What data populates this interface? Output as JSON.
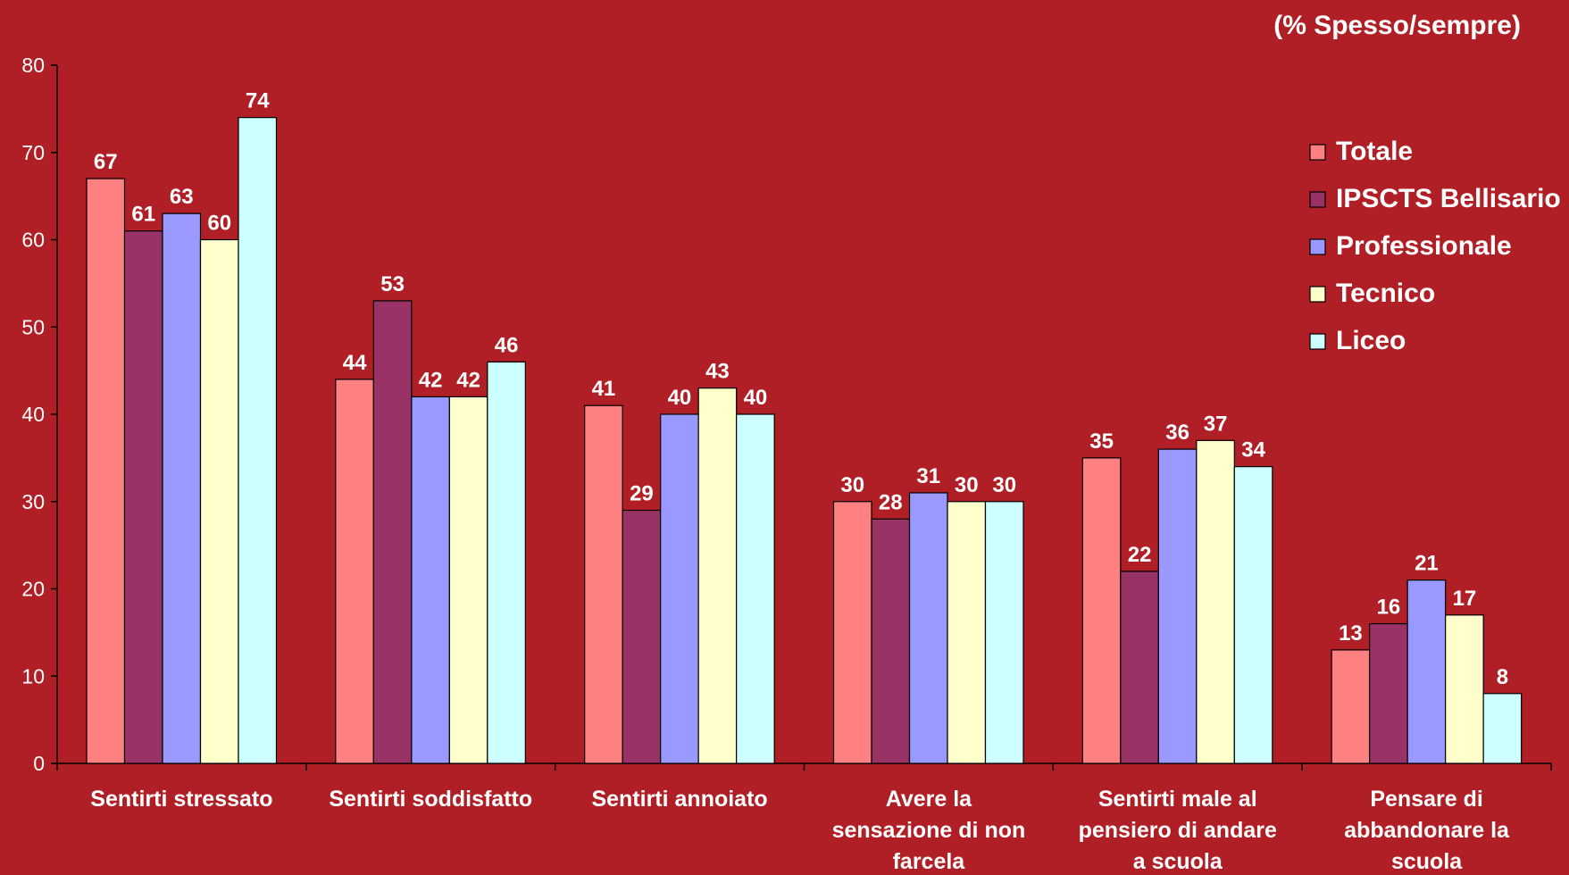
{
  "chart_data": {
    "type": "bar",
    "title": "",
    "subtitle": "(% Spesso/sempre)",
    "xlabel": "",
    "ylabel": "",
    "ylim": [
      0,
      80
    ],
    "yticks": [
      0,
      10,
      20,
      30,
      40,
      50,
      60,
      70,
      80
    ],
    "grid": false,
    "legend_position": "right",
    "categories": [
      [
        "Sentirti stressato"
      ],
      [
        "Sentirti soddisfatto"
      ],
      [
        "Sentirti annoiato"
      ],
      [
        "Avere la",
        "sensazione di non",
        "farcela"
      ],
      [
        "Sentirti male al",
        "pensiero di andare",
        "a scuola"
      ],
      [
        "Pensare di",
        "abbandonare la",
        "scuola"
      ]
    ],
    "series": [
      {
        "name": "Totale",
        "color": "#ff8080",
        "values": [
          67,
          44,
          41,
          30,
          35,
          13
        ]
      },
      {
        "name": "IPSCTS Bellisario",
        "color": "#993366",
        "values": [
          61,
          53,
          29,
          28,
          22,
          16
        ]
      },
      {
        "name": "Professionale",
        "color": "#9999ff",
        "values": [
          63,
          42,
          40,
          31,
          36,
          21
        ]
      },
      {
        "name": "Tecnico",
        "color": "#ffffcc",
        "values": [
          60,
          42,
          43,
          30,
          37,
          17
        ]
      },
      {
        "name": "Liceo",
        "color": "#ccffff",
        "values": [
          74,
          46,
          40,
          30,
          34,
          8
        ]
      }
    ]
  }
}
